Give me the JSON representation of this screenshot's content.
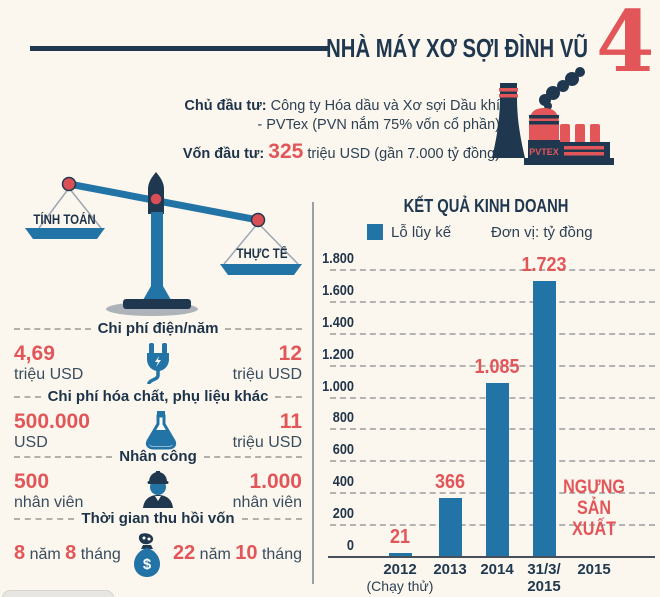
{
  "colors": {
    "navy": "#20384f",
    "blue": "#2273a6",
    "red": "#e25659",
    "background": "#fbf7ee"
  },
  "header": {
    "title": "NHÀ MÁY XƠ SỢI ĐÌNH VŨ",
    "number": "4"
  },
  "investor": {
    "label": "Chủ đầu tư:",
    "line1": "Công ty Hóa dầu và Xơ sợi Dầu khí",
    "line2": "- PVTex (PVN nắm 75% vốn cổ phần)",
    "capital_label": "Vốn đầu tư:",
    "capital_value": "325",
    "capital_suffix": "triệu USD (gần 7.000 tỷ đồng)"
  },
  "factory": {
    "brand": "PVTEX"
  },
  "scale": {
    "left_label": "TÍNH TOÁN",
    "right_label": "THỰC TẾ"
  },
  "comparison": {
    "rows": [
      {
        "title": "Chi phí điện/năm",
        "icon": "plug-icon",
        "left_value": "4,69",
        "left_unit": "triệu USD",
        "right_value": "12",
        "right_unit": "triệu USD"
      },
      {
        "title": "Chi phí hóa chất, phụ liệu khác",
        "icon": "flask-icon",
        "left_value": "500.000",
        "left_unit": "USD",
        "right_value": "11",
        "right_unit": "triệu USD"
      },
      {
        "title": "Nhân công",
        "icon": "worker-icon",
        "left_value": "500",
        "left_unit": "nhân viên",
        "right_value": "1.000",
        "right_unit": "nhân viên"
      },
      {
        "title": "Thời gian thu hồi vốn",
        "icon": "money-bag-icon",
        "left": {
          "n1": "8",
          "w1": "năm",
          "n2": "8",
          "w2": "tháng"
        },
        "right": {
          "n1": "22",
          "w1": "năm",
          "n2": "10",
          "w2": "tháng"
        }
      }
    ]
  },
  "chart_data": {
    "type": "bar",
    "title": "KẾT QUẢ KINH DOANH",
    "legend": [
      {
        "label": "Lỗ lũy kế",
        "color": "#2273a6"
      }
    ],
    "unit_note": "Đơn vị: tỷ đồng",
    "categories": [
      [
        "2012",
        "(Chạy thử)"
      ],
      [
        "2013"
      ],
      [
        "2014"
      ],
      [
        "31/3/",
        "2015"
      ],
      [
        "2015"
      ]
    ],
    "values": [
      21,
      366,
      1085,
      1723,
      null
    ],
    "data_labels": [
      "21",
      "366",
      "1.085",
      "1.723",
      ""
    ],
    "annotation": {
      "text": "NGƯNG SẢN XUẤT",
      "category": "2015",
      "color": "#e25659"
    },
    "ylabel": "",
    "xlabel": "",
    "ylim": [
      0,
      1800
    ],
    "ytick_step": 200,
    "ytick_labels": [
      "1.800",
      "1.600",
      "1.400",
      "1.200",
      "1.000",
      "800",
      "600",
      "400",
      "200",
      "0"
    ],
    "grid": "dashed horizontal",
    "bar_color": "#2273a6",
    "legend_position": "top"
  }
}
